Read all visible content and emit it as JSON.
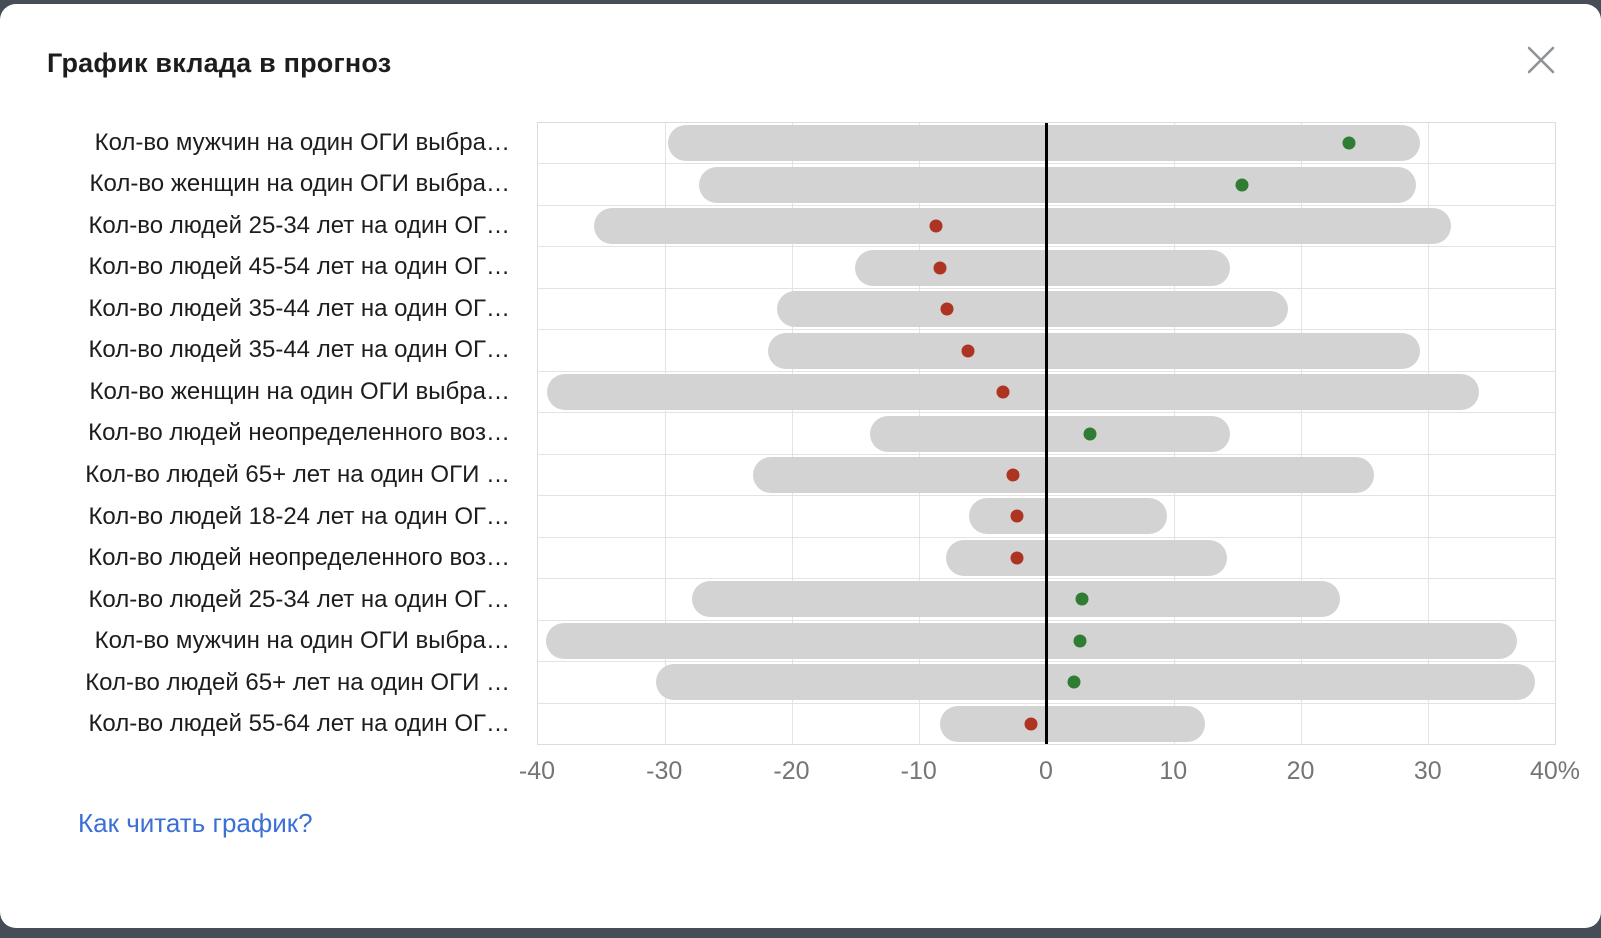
{
  "modal": {
    "help_link": "Как читать график?"
  },
  "chart_data": {
    "type": "dot-range",
    "title": "График вклада в прогноз",
    "legend_position": "none",
    "grid": true,
    "axis": {
      "min": -40,
      "max": 40,
      "tick_step": 10,
      "unit": "%",
      "tick_labels": [
        "-40",
        "-30",
        "-20",
        "-10",
        "0",
        "10",
        "20",
        "30",
        "40%"
      ]
    },
    "colors": {
      "bar": "#d3d3d3",
      "positive_dot": "#2e7d32",
      "negative_dot": "#ad3423",
      "zero_line": "#000000"
    },
    "rows": [
      {
        "label": "Кол-во мужчин на один ОГИ выбра…",
        "range": [
          -29.8,
          29.4
        ],
        "value": 23.8,
        "direction": "positive"
      },
      {
        "label": "Кол-во женщин на один ОГИ выбра…",
        "range": [
          -27.3,
          29.1
        ],
        "value": 15.4,
        "direction": "positive"
      },
      {
        "label": "Кол-во людей 25-34 лет на один ОГ…",
        "range": [
          -35.6,
          31.8
        ],
        "value": -8.7,
        "direction": "negative"
      },
      {
        "label": "Кол-во людей 45-54 лет на один ОГ…",
        "range": [
          -15.1,
          14.4
        ],
        "value": -8.4,
        "direction": "negative"
      },
      {
        "label": "Кол-во людей 35-44 лет на один ОГ…",
        "range": [
          -21.2,
          19.0
        ],
        "value": -7.8,
        "direction": "negative"
      },
      {
        "label": "Кол-во людей 35-44 лет на один ОГ…",
        "range": [
          -21.9,
          29.4
        ],
        "value": -6.2,
        "direction": "negative"
      },
      {
        "label": "Кол-во женщин на один ОГИ выбра…",
        "range": [
          -39.3,
          34.0
        ],
        "value": -3.4,
        "direction": "negative"
      },
      {
        "label": "Кол-во людей неопределенного воз…",
        "range": [
          -13.9,
          14.4
        ],
        "value": 3.4,
        "direction": "positive"
      },
      {
        "label": "Кол-во людей 65+ лет на один ОГИ …",
        "range": [
          -23.1,
          25.8
        ],
        "value": -2.6,
        "direction": "negative"
      },
      {
        "label": "Кол-во людей 18-24 лет на один ОГ…",
        "range": [
          -6.1,
          9.5
        ],
        "value": -2.3,
        "direction": "negative"
      },
      {
        "label": "Кол-во людей неопределенного воз…",
        "range": [
          -7.9,
          14.2
        ],
        "value": -2.3,
        "direction": "negative"
      },
      {
        "label": "Кол-во людей 25-34 лет на один ОГ…",
        "range": [
          -27.9,
          23.1
        ],
        "value": 2.8,
        "direction": "positive"
      },
      {
        "label": "Кол-во мужчин на один ОГИ выбра…",
        "range": [
          -39.4,
          37.0
        ],
        "value": 2.6,
        "direction": "positive"
      },
      {
        "label": "Кол-во людей 65+ лет на один ОГИ …",
        "range": [
          -30.7,
          38.4
        ],
        "value": 2.2,
        "direction": "positive"
      },
      {
        "label": "Кол-во людей 55-64 лет на один ОГ…",
        "range": [
          -8.4,
          12.5
        ],
        "value": -1.2,
        "direction": "negative"
      }
    ]
  }
}
